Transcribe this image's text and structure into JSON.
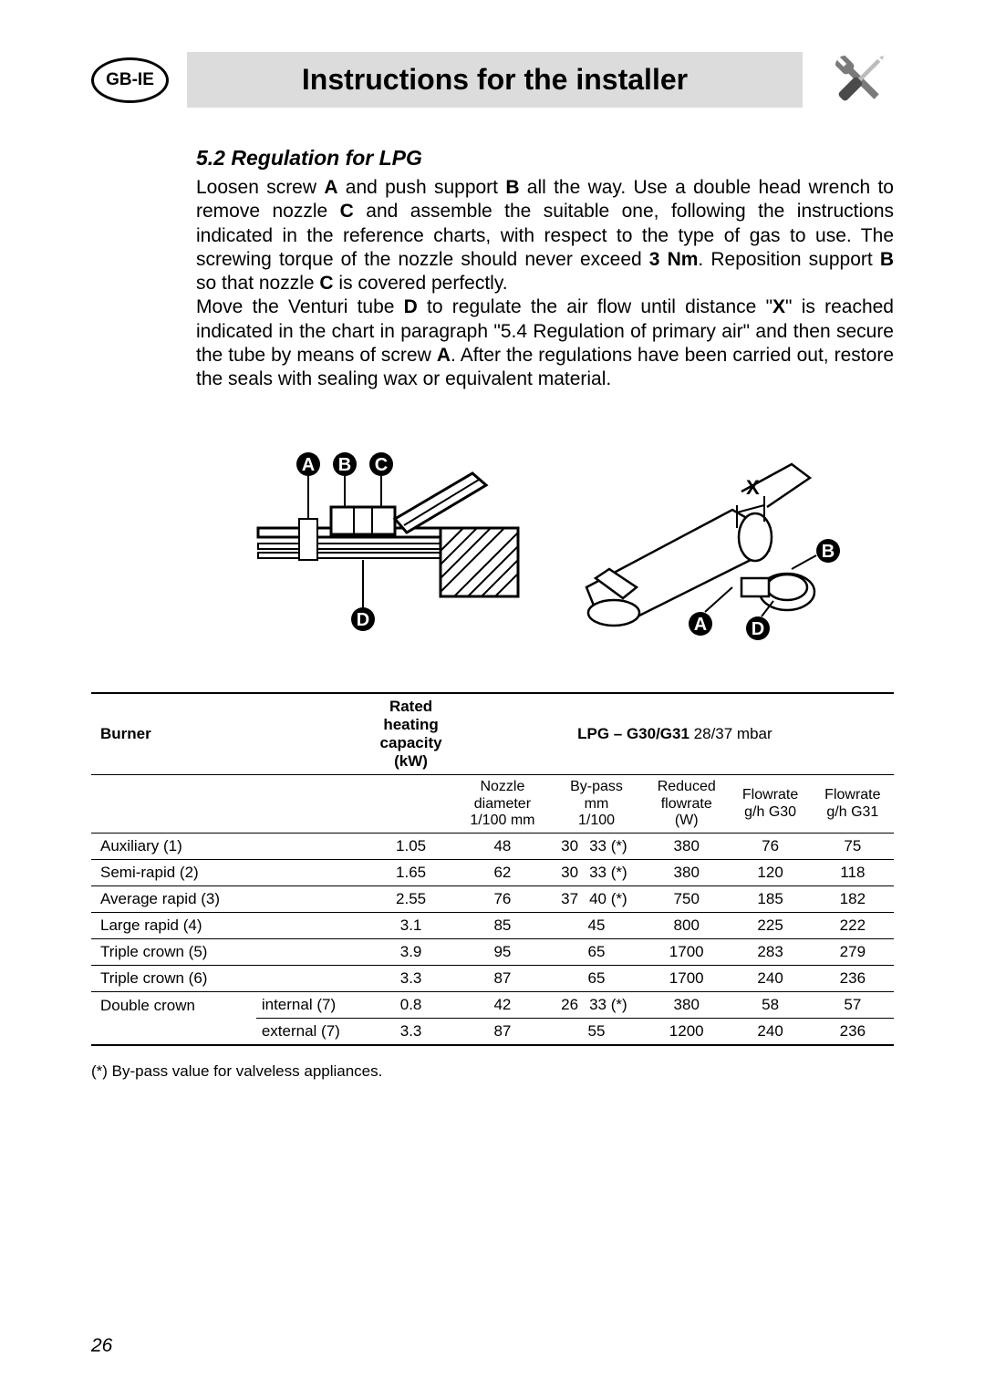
{
  "header": {
    "badge": "GB-IE",
    "title": "Instructions for the installer",
    "icon_name": "tools-icon",
    "icon_colors": {
      "wrench": "#7a7a7a",
      "screwdriver_handle": "#4a4a4a",
      "screwdriver_shaft": "#bcbcbc"
    }
  },
  "section": {
    "heading": "5.2 Regulation for LPG",
    "p1a": "Loosen screw ",
    "p1_bA": "A",
    "p1b": " and push support ",
    "p1_bB": "B",
    "p1c": " all the way. Use a double head wrench to remove nozzle ",
    "p1_bC": "C",
    "p1d": " and assemble the suitable one, following the instructions indicated in the reference charts, with respect to the type of gas to use. The screwing torque of the nozzle should never exceed ",
    "p1_b3": "3 Nm",
    "p1e": ". Reposition support ",
    "p1_bB2": "B",
    "p1f": " so that nozzle ",
    "p1_bC2": "C",
    "p1g": " is covered perfectly.",
    "p2a": "Move the Venturi tube ",
    "p2_bD": "D",
    "p2b": " to regulate the air flow until distance \"",
    "p2_bX": "X",
    "p2c": "\" is reached indicated in the chart in paragraph \"5.4 Regulation of primary air\" and then secure the tube by means of screw ",
    "p2_bA": "A",
    "p2d": ".  After the regulations have been carried out, restore the seals with sealing wax or equivalent material."
  },
  "diagrams": {
    "left_labels": [
      "A",
      "B",
      "C",
      "D"
    ],
    "right_labels": [
      "X",
      "A",
      "B",
      "D"
    ]
  },
  "table": {
    "header": {
      "burner": "Burner",
      "rated_l1": "Rated",
      "rated_l2": "heating",
      "rated_l3": "capacity",
      "rated_l4": "(kW)",
      "lpg_bold": "LPG – G30/G31",
      "lpg_light": "  28/37 mbar",
      "sub": {
        "nozzle_l1": "Nozzle",
        "nozzle_l2": "diameter",
        "nozzle_l3": "1/100 mm",
        "bypass_l1": "By-pass",
        "bypass_l2": "mm",
        "bypass_l3": "1/100",
        "reduced_l1": "Reduced",
        "reduced_l2": "flowrate",
        "reduced_l3": "(W)",
        "g30_l1": "Flowrate",
        "g30_l2": "g/h G30",
        "g31_l1": "Flowrate",
        "g31_l2": "g/h G31"
      }
    },
    "rows": [
      {
        "name": "Auxiliary (1)",
        "sub": "",
        "kw": "1.05",
        "nozzle": "48",
        "bp_a": "30",
        "bp_b": "33 (*)",
        "bp_merged": "",
        "red": "380",
        "g30": "76",
        "g31": "75"
      },
      {
        "name": "Semi-rapid (2)",
        "sub": "",
        "kw": "1.65",
        "nozzle": "62",
        "bp_a": "30",
        "bp_b": "33 (*)",
        "bp_merged": "",
        "red": "380",
        "g30": "120",
        "g31": "118"
      },
      {
        "name": "Average rapid (3)",
        "sub": "",
        "kw": "2.55",
        "nozzle": "76",
        "bp_a": "37",
        "bp_b": "40 (*)",
        "bp_merged": "",
        "red": "750",
        "g30": "185",
        "g31": "182"
      },
      {
        "name": "Large rapid (4)",
        "sub": "",
        "kw": "3.1",
        "nozzle": "85",
        "bp_a": "",
        "bp_b": "",
        "bp_merged": "45",
        "red": "800",
        "g30": "225",
        "g31": "222"
      },
      {
        "name": "Triple crown (5)",
        "sub": "",
        "kw": "3.9",
        "nozzle": "95",
        "bp_a": "",
        "bp_b": "",
        "bp_merged": "65",
        "red": "1700",
        "g30": "283",
        "g31": "279"
      },
      {
        "name": "Triple crown (6)",
        "sub": "",
        "kw": "3.3",
        "nozzle": "87",
        "bp_a": "",
        "bp_b": "",
        "bp_merged": "65",
        "red": "1700",
        "g30": "240",
        "g31": "236"
      },
      {
        "name": "Double crown",
        "sub": "internal (7)",
        "kw": "0.8",
        "nozzle": "42",
        "bp_a": "26",
        "bp_b": "33 (*)",
        "bp_merged": "",
        "red": "380",
        "g30": "58",
        "g31": "57"
      },
      {
        "name": "",
        "sub": "external (7)",
        "kw": "3.3",
        "nozzle": "87",
        "bp_a": "",
        "bp_b": "",
        "bp_merged": "55",
        "red": "1200",
        "g30": "240",
        "g31": "236"
      }
    ],
    "footnote": "(*) By-pass value for valveless appliances."
  },
  "page_number": "26"
}
